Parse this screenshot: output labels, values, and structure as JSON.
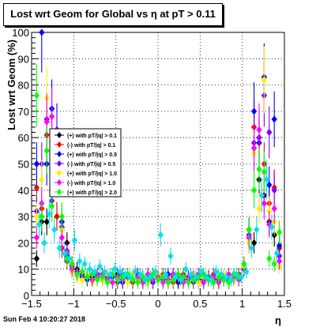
{
  "title": "Lost wrt Geom for Global vs   η at pT > 0.11",
  "footer": "Sun Feb  4 10:20:27 2018",
  "chart_data": {
    "type": "scatter",
    "title": "Lost wrt Geom for Global vs   η at pT > 0.11",
    "xlabel": "η",
    "ylabel": "Lost wrt Geom (%)",
    "xlim": [
      -1.5,
      1.5
    ],
    "ylim": [
      0,
      100
    ],
    "x_ticks": [
      "−1.5",
      "−1",
      "−0.5",
      "0",
      "0.5",
      "1",
      "1.5"
    ],
    "y_ticks": [
      "0",
      "10",
      "20",
      "30",
      "40",
      "50",
      "60",
      "70",
      "80",
      "90",
      "100"
    ],
    "grid": true,
    "legend_position": "left-middle",
    "series": [
      {
        "name": "(+) with pT/|q| > 0.1",
        "color": "#000000",
        "x": [
          -1.44,
          -1.38,
          -1.32,
          -1.26,
          -1.2,
          -1.14,
          -1.08,
          -1.02,
          -0.96,
          -0.9,
          -0.84,
          -0.78,
          -0.72,
          -0.66,
          -0.6,
          -0.54,
          -0.48,
          -0.42,
          -0.36,
          -0.3,
          -0.24,
          -0.18,
          -0.12,
          -0.06,
          0.0,
          0.06,
          0.12,
          0.18,
          0.24,
          0.3,
          0.36,
          0.42,
          0.48,
          0.54,
          0.6,
          0.66,
          0.72,
          0.78,
          0.84,
          0.9,
          0.96,
          1.02,
          1.08,
          1.14,
          1.2,
          1.26,
          1.32,
          1.38,
          1.44
        ],
        "y": [
          14,
          28,
          28,
          40,
          30,
          25,
          20,
          12,
          10,
          8,
          8,
          7,
          7,
          8,
          6,
          7,
          8,
          6,
          7,
          8,
          6,
          7,
          5,
          8,
          8,
          7,
          6,
          8,
          5,
          7,
          6,
          8,
          6,
          5,
          7,
          6,
          5,
          7,
          5,
          6,
          8,
          10,
          25,
          20,
          44,
          38,
          28,
          23,
          18
        ]
      },
      {
        "name": "(-) with pT/|q| > 0.1",
        "color": "#ff0000",
        "x": [
          -1.44,
          -1.38,
          -1.32,
          -1.26,
          -1.2,
          -1.14,
          -1.08,
          -1.02,
          -0.96,
          -0.9,
          -0.84,
          -0.78,
          -0.72,
          -0.66,
          -0.6,
          -0.54,
          -0.48,
          -0.42,
          -0.36,
          -0.3,
          -0.24,
          -0.18,
          -0.12,
          -0.06,
          0.0,
          0.06,
          0.12,
          0.18,
          0.24,
          0.3,
          0.36,
          0.42,
          0.48,
          0.54,
          0.6,
          0.66,
          0.72,
          0.78,
          0.84,
          0.9,
          0.96,
          1.02,
          1.08,
          1.14,
          1.2,
          1.26,
          1.32,
          1.38,
          1.44
        ],
        "y": [
          41,
          33,
          61,
          48,
          30,
          18,
          13,
          11,
          9,
          8,
          7,
          6,
          7,
          6,
          7,
          8,
          6,
          7,
          8,
          5,
          7,
          6,
          8,
          6,
          7,
          8,
          6,
          5,
          7,
          8,
          6,
          7,
          5,
          6,
          7,
          8,
          6,
          7,
          5,
          6,
          8,
          12,
          20,
          64,
          60,
          50,
          35,
          41,
          18
        ]
      },
      {
        "name": "(+) with pT/|q| > 0.5",
        "color": "#0000ff",
        "x": [
          -1.44,
          -1.38,
          -1.32,
          -1.26,
          -1.2,
          -1.14,
          -1.08,
          -1.02,
          -0.96,
          -0.9,
          -0.84,
          -0.78,
          -0.72,
          -0.66,
          -0.6,
          -0.54,
          -0.48,
          -0.42,
          -0.36,
          -0.3,
          -0.24,
          -0.18,
          -0.12,
          -0.06,
          0.0,
          0.06,
          0.12,
          0.18,
          0.24,
          0.3,
          0.36,
          0.42,
          0.48,
          0.54,
          0.6,
          0.66,
          0.72,
          0.78,
          0.84,
          0.9,
          0.96,
          1.02,
          1.08,
          1.14,
          1.2,
          1.26,
          1.32,
          1.38,
          1.44
        ],
        "y": [
          50,
          100,
          50,
          71,
          63,
          28,
          15,
          9,
          8,
          7,
          6,
          8,
          7,
          6,
          7,
          8,
          6,
          5,
          7,
          6,
          8,
          7,
          6,
          5,
          7,
          6,
          8,
          7,
          6,
          5,
          7,
          6,
          8,
          7,
          6,
          5,
          7,
          6,
          5,
          7,
          6,
          11,
          22,
          70,
          58,
          83,
          42,
          67,
          19
        ]
      },
      {
        "name": "(-) with pT/|q| > 0.5",
        "color": "#7a00ff",
        "x": [
          -1.44,
          -1.38,
          -1.32,
          -1.26,
          -1.2,
          -1.14,
          -1.08,
          -1.02,
          -0.96,
          -0.9,
          -0.84,
          -0.78,
          -0.72,
          -0.66,
          -0.6,
          -0.54,
          -0.48,
          -0.42,
          -0.36,
          -0.3,
          -0.24,
          -0.18,
          -0.12,
          -0.06,
          0.0,
          0.06,
          0.12,
          0.18,
          0.24,
          0.3,
          0.36,
          0.42,
          0.48,
          0.54,
          0.6,
          0.66,
          0.72,
          0.78,
          0.84,
          0.9,
          0.96,
          1.02,
          1.08,
          1.14,
          1.2,
          1.26,
          1.32,
          1.38,
          1.44
        ],
        "y": [
          32,
          50,
          67,
          36,
          60,
          26,
          17,
          10,
          9,
          8,
          7,
          6,
          8,
          7,
          6,
          7,
          5,
          8,
          7,
          6,
          7,
          5,
          6,
          8,
          7,
          6,
          5,
          7,
          8,
          6,
          7,
          5,
          6,
          8,
          7,
          6,
          5,
          7,
          6,
          8,
          7,
          10,
          23,
          58,
          60,
          76,
          62,
          40,
          15
        ]
      },
      {
        "name": "(+) with pT/|q| > 1.0",
        "color": "#ffee00",
        "x": [
          -1.44,
          -1.38,
          -1.32,
          -1.26,
          -1.2,
          -1.14,
          -1.08,
          -1.02,
          -0.96,
          -0.9,
          -0.84,
          -0.78,
          -0.72,
          -0.66,
          -0.6,
          -0.54,
          -0.48,
          -0.42,
          -0.36,
          -0.3,
          -0.24,
          -0.18,
          -0.12,
          -0.06,
          0.0,
          0.06,
          0.12,
          0.18,
          0.24,
          0.3,
          0.36,
          0.42,
          0.48,
          0.54,
          0.6,
          0.66,
          0.72,
          0.78,
          0.84,
          0.9,
          0.96,
          1.02,
          1.08,
          1.14,
          1.2,
          1.26,
          1.32,
          1.38,
          1.44
        ],
        "y": [
          30,
          44,
          75,
          56,
          44,
          25,
          14,
          9,
          7,
          6,
          8,
          5,
          7,
          6,
          8,
          5,
          6,
          7,
          5,
          8,
          6,
          7,
          5,
          6,
          8,
          7,
          5,
          6,
          7,
          5,
          6,
          8,
          5,
          7,
          6,
          5,
          7,
          8,
          5,
          6,
          7,
          11,
          20,
          54,
          33,
          82,
          32,
          28,
          11
        ]
      },
      {
        "name": "(-) with pT/|q| > 1.0",
        "color": "#ff00ff",
        "x": [
          -1.44,
          -1.38,
          -1.32,
          -1.26,
          -1.2,
          -1.14,
          -1.08,
          -1.02,
          -0.96,
          -0.9,
          -0.84,
          -0.78,
          -0.72,
          -0.66,
          -0.6,
          -0.54,
          -0.48,
          -0.42,
          -0.36,
          -0.3,
          -0.24,
          -0.18,
          -0.12,
          -0.06,
          0.0,
          0.06,
          0.12,
          0.18,
          0.24,
          0.3,
          0.36,
          0.42,
          0.48,
          0.54,
          0.6,
          0.66,
          0.72,
          0.78,
          0.84,
          0.9,
          0.96,
          1.02,
          1.08,
          1.14,
          1.2,
          1.26,
          1.32,
          1.38,
          1.44
        ],
        "y": [
          22,
          35,
          66,
          68,
          55,
          22,
          16,
          10,
          8,
          9,
          7,
          6,
          7,
          8,
          6,
          5,
          7,
          6,
          8,
          6,
          7,
          5,
          8,
          6,
          7,
          5,
          6,
          8,
          7,
          5,
          6,
          7,
          8,
          5,
          6,
          7,
          5,
          6,
          8,
          7,
          6,
          12,
          22,
          56,
          63,
          35,
          27,
          33,
          13
        ]
      },
      {
        "name": "(+) with pT/|q| > 2.0",
        "color": "#00ff00",
        "x": [
          -1.44,
          -1.38,
          -1.32,
          -1.26,
          -1.2,
          -1.14,
          -1.08,
          -1.02,
          -0.96,
          -0.9,
          -0.84,
          -0.78,
          -0.72,
          -0.66,
          -0.6,
          -0.54,
          -0.48,
          -0.42,
          -0.36,
          -0.3,
          -0.24,
          -0.18,
          -0.12,
          -0.06,
          0.0,
          0.06,
          0.12,
          0.18,
          0.24,
          0.3,
          0.36,
          0.42,
          0.48,
          0.54,
          0.6,
          0.66,
          0.72,
          0.78,
          0.84,
          0.9,
          0.96,
          1.02,
          1.08,
          1.14,
          1.2,
          1.26,
          1.32,
          1.38,
          1.44
        ],
        "y": [
          76,
          30,
          55,
          34,
          45,
          30,
          14,
          12,
          8,
          9,
          7,
          8,
          6,
          7,
          5,
          8,
          6,
          7,
          8,
          6,
          5,
          7,
          6,
          8,
          6,
          7,
          5,
          6,
          8,
          7,
          5,
          6,
          7,
          8,
          6,
          5,
          7,
          6,
          5,
          8,
          7,
          12,
          25,
          40,
          48,
          47,
          14,
          12,
          24
        ]
      },
      {
        "name": "",
        "color": "#00e0f0",
        "x": [
          -1.41,
          -1.35,
          -1.29,
          -1.23,
          -1.17,
          -1.11,
          -1.05,
          -0.99,
          -0.93,
          -0.87,
          -0.81,
          -0.75,
          -0.69,
          -0.63,
          -0.57,
          -0.51,
          -0.45,
          -0.39,
          -0.33,
          -0.27,
          -0.21,
          -0.15,
          -0.09,
          -0.03,
          0.03,
          0.09,
          0.15,
          0.21,
          0.27,
          0.33,
          0.39,
          0.45,
          0.51,
          0.57,
          0.63,
          0.69,
          0.75,
          0.81,
          0.87,
          0.93,
          0.99,
          1.05,
          1.11,
          1.17,
          1.23,
          1.29,
          1.35,
          1.41
        ],
        "y": [
          27,
          20,
          31,
          25,
          18,
          16,
          14,
          21,
          13,
          12,
          10,
          9,
          11,
          9,
          8,
          10,
          9,
          8,
          7,
          9,
          8,
          6,
          7,
          9,
          23,
          8,
          15,
          7,
          6,
          10,
          8,
          7,
          9,
          7,
          6,
          9,
          8,
          7,
          6,
          8,
          7,
          9,
          18,
          25,
          38,
          44,
          26,
          16
        ]
      }
    ]
  }
}
